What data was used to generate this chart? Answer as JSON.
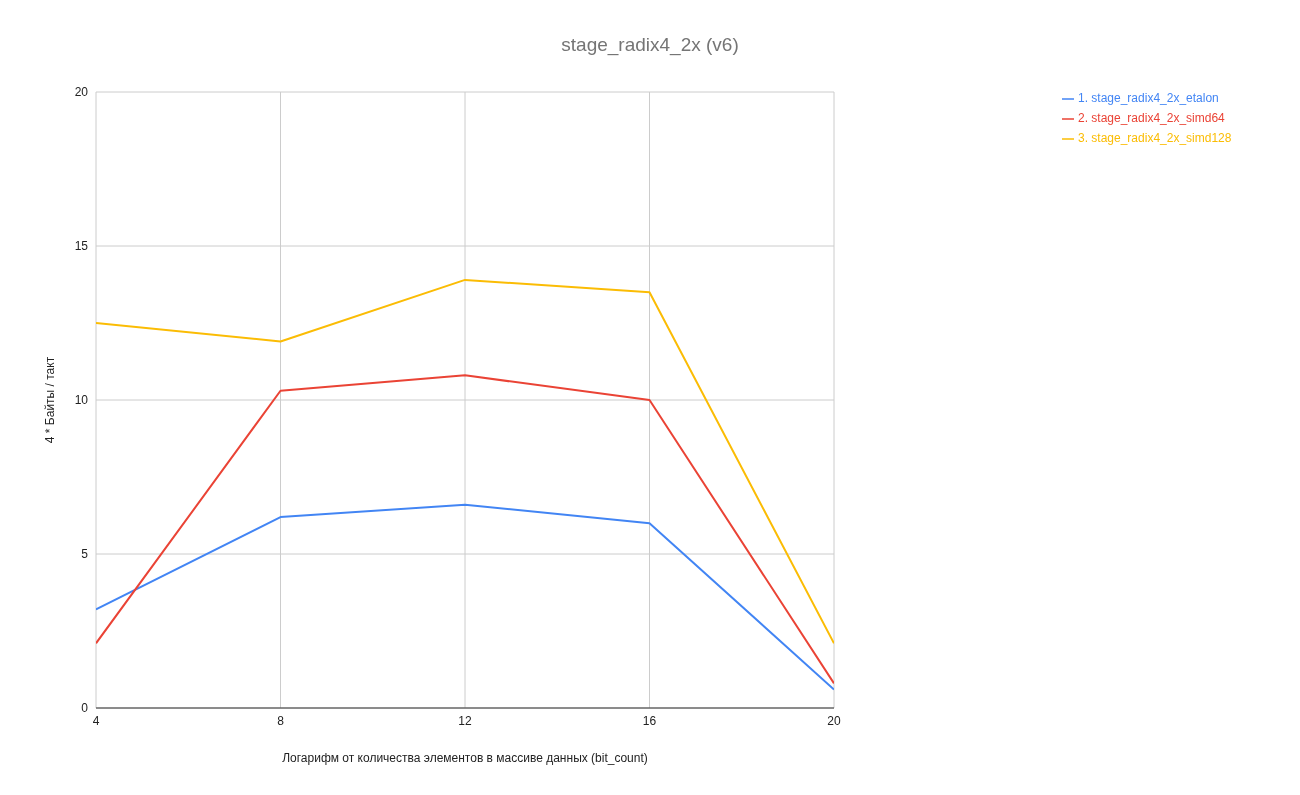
{
  "chart_data": {
    "type": "line",
    "title": "stage_radix4_2x (v6)",
    "xlabel": "Логарифм от количества элементов в массиве данных (bit_count)",
    "ylabel": "4 * Байты / такт",
    "x": [
      4,
      8,
      12,
      16,
      20
    ],
    "series": [
      {
        "name": "1. stage_radix4_2x_etalon",
        "color": "#4285f4",
        "values": [
          3.2,
          6.2,
          6.6,
          6.0,
          0.6
        ]
      },
      {
        "name": "2. stage_radix4_2x_simd64",
        "color": "#ea4335",
        "values": [
          2.1,
          10.3,
          10.8,
          10.0,
          0.8
        ]
      },
      {
        "name": "3. stage_radix4_2x_simd128",
        "color": "#fbbc04",
        "values": [
          12.5,
          11.9,
          13.9,
          13.5,
          2.1
        ]
      }
    ],
    "xlim": [
      4,
      20
    ],
    "xticks": [
      4,
      8,
      12,
      16,
      20
    ],
    "ylim": [
      0,
      20
    ],
    "yticks": [
      0,
      5,
      10,
      15,
      20
    ],
    "grid": true,
    "legend": "top right",
    "marker": "none",
    "line_style": "solid"
  }
}
